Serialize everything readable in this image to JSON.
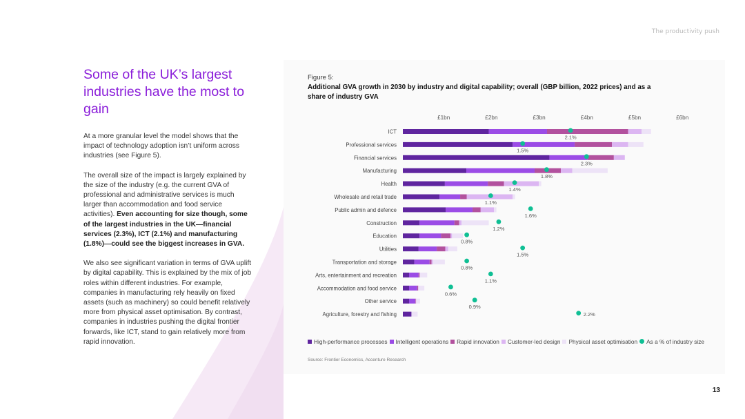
{
  "header": {
    "section": "The productivity push"
  },
  "title": "Some of the UK’s largest industries have the most to gain",
  "body": {
    "p1": "At a more granular level the model shows that the impact of technology adoption isn’t uniform across industries (see Figure 5).",
    "p2_plain": "The overall size of the impact is largely explained by the size of the industry (e.g. the current GVA of professional and administrative services is much larger than accommodation and food service activities). ",
    "p2_bold": "Even accounting for size though, some of the largest industries in the UK—financial services (2.3%), ICT (2.1%) and manufacturing (1.8%)—could see the biggest increases in GVA.",
    "p3": "We also see significant variation in terms of GVA uplift by digital capability. This is explained by the mix of job roles within different industries. For example, companies in manufacturing rely heavily on fixed assets (such as machinery) so could benefit relatively more from physical asset optimisation. By contrast, companies in industries pushing the digital frontier forwards, like ICT, stand to gain relatively more from rapid innovation."
  },
  "figure": {
    "label": "Figure 5:",
    "title": "Additional GVA growth in 2030 by industry and digital capability; overall (GBP billion, 2022 prices) and as a share of industry GVA",
    "source": "Source: Frontier Economics, Accenture Research"
  },
  "colors": {
    "hpp": "#5f259f",
    "io": "#9b4ce6",
    "ri": "#b2519e",
    "cld": "#dcb6f2",
    "pao": "#ede3f7",
    "dot": "#0fbf94"
  },
  "chart_data": {
    "type": "bar",
    "orientation": "horizontal",
    "stacked": true,
    "x_ticks": [
      "£1bn",
      "£2bn",
      "£3bn",
      "£4bn",
      "£5bn",
      "£6bn"
    ],
    "xlim": [
      0,
      6
    ],
    "grid": false,
    "legend_position": "bottom",
    "categories": [
      "ICT",
      "Professional services",
      "Financial services",
      "Manufacturing",
      "Health",
      "Wholesale and retail trade",
      "Public admin and defence",
      "Construction",
      "Education",
      "Utilities",
      "Transportation and storage",
      "Arts, entertainment and recreation",
      "Accommodation and food service",
      "Other service",
      "Agriculture, forestry and fishing"
    ],
    "series": [
      {
        "name": "High-performance processes",
        "key": "hpp",
        "values": [
          1.8,
          2.3,
          3.07,
          1.33,
          0.88,
          0.77,
          0.9,
          0.35,
          0.35,
          0.33,
          0.24,
          0.13,
          0.13,
          0.13,
          0.18
        ]
      },
      {
        "name": "Intelligent operations",
        "key": "io",
        "values": [
          1.22,
          1.3,
          0.8,
          1.43,
          0.9,
          0.43,
          0.56,
          0.73,
          0.45,
          0.38,
          0.32,
          0.2,
          0.17,
          0.13,
          0.0
        ]
      },
      {
        "name": "Rapid innovation",
        "key": "ri",
        "values": [
          1.7,
          0.78,
          0.55,
          0.55,
          0.34,
          0.14,
          0.17,
          0.1,
          0.2,
          0.18,
          0.04,
          0.02,
          0.02,
          0.01,
          0.0
        ]
      },
      {
        "name": "Customer-led design",
        "key": "cld",
        "values": [
          0.28,
          0.34,
          0.23,
          0.24,
          0.73,
          0.96,
          0.28,
          0.05,
          0.03,
          0.06,
          0.03,
          0.01,
          0.01,
          0.01,
          0.0
        ]
      },
      {
        "name": "Physical asset optimisation",
        "key": "pao",
        "values": [
          0.2,
          0.32,
          0.0,
          0.74,
          0.05,
          0.05,
          0.05,
          0.57,
          0.23,
          0.19,
          0.25,
          0.15,
          0.12,
          0.08,
          0.13
        ]
      }
    ],
    "share_series": {
      "name": "As a % of industry size",
      "key": "dot",
      "values": [
        2.1,
        1.5,
        2.3,
        1.8,
        1.4,
        1.1,
        1.6,
        1.2,
        0.8,
        1.5,
        0.8,
        1.1,
        0.6,
        0.9,
        2.2
      ],
      "labels": [
        "2.1%",
        "1.5%",
        "2.3%",
        "1.8%",
        "1.4%",
        "1.1%",
        "1.6%",
        "1.2%",
        "0.8%",
        "1.5%",
        "0.8%",
        "1.1%",
        "0.6%",
        "0.9%",
        "2.2%"
      ]
    }
  },
  "page_number": "13"
}
